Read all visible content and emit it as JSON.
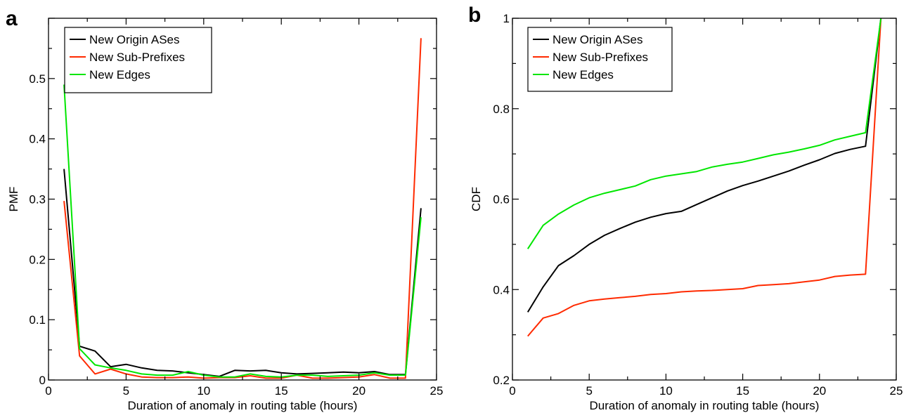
{
  "chart_data": [
    {
      "panel": "a",
      "type": "line",
      "title": "",
      "xlabel": "Duration of anomaly in routing table (hours)",
      "ylabel": "PMF",
      "xlim": [
        0,
        25
      ],
      "ylim": [
        0,
        0.6
      ],
      "xticks": [
        0,
        5,
        10,
        15,
        20,
        25
      ],
      "yticks": [
        0,
        0.1,
        0.2,
        0.3,
        0.4,
        0.5
      ],
      "ytick_labels": [
        "0",
        "0.1",
        "0.2",
        "0.3",
        "0.4",
        "0.5"
      ],
      "grid": false,
      "legend": "top-left",
      "x": [
        1,
        2,
        3,
        4,
        5,
        6,
        7,
        8,
        9,
        10,
        11,
        12,
        13,
        14,
        15,
        16,
        17,
        18,
        19,
        20,
        21,
        22,
        23,
        24
      ],
      "series": [
        {
          "name": "New Origin ASes",
          "color": "#000000",
          "values": [
            0.35,
            0.056,
            0.048,
            0.022,
            0.026,
            0.02,
            0.016,
            0.015,
            0.012,
            0.009,
            0.006,
            0.016,
            0.015,
            0.016,
            0.012,
            0.01,
            0.011,
            0.012,
            0.013,
            0.012,
            0.014,
            0.009,
            0.009,
            0.285
          ]
        },
        {
          "name": "New Sub-Prefixes",
          "color": "#ff2a00",
          "values": [
            0.297,
            0.04,
            0.01,
            0.018,
            0.01,
            0.005,
            0.004,
            0.004,
            0.005,
            0.003,
            0.004,
            0.004,
            0.007,
            0.003,
            0.003,
            0.008,
            0.003,
            0.003,
            0.004,
            0.005,
            0.009,
            0.003,
            0.003,
            0.567
          ]
        },
        {
          "name": "New Edges",
          "color": "#00e600",
          "values": [
            0.49,
            0.052,
            0.025,
            0.02,
            0.016,
            0.01,
            0.008,
            0.008,
            0.014,
            0.008,
            0.005,
            0.005,
            0.01,
            0.006,
            0.005,
            0.008,
            0.008,
            0.006,
            0.007,
            0.008,
            0.012,
            0.008,
            0.008,
            0.27
          ]
        }
      ]
    },
    {
      "panel": "b",
      "type": "line",
      "title": "",
      "xlabel": "Duration of anomaly in routing table (hours)",
      "ylabel": "CDF",
      "xlim": [
        0,
        25
      ],
      "ylim": [
        0.2,
        1
      ],
      "xticks": [
        0,
        5,
        10,
        15,
        20,
        25
      ],
      "yticks": [
        0.2,
        0.4,
        0.6,
        0.8,
        1
      ],
      "ytick_labels": [
        "0.2",
        "0.4",
        "0.6",
        "0.8",
        "1"
      ],
      "grid": false,
      "legend": "top-left",
      "x": [
        1,
        2,
        3,
        4,
        5,
        6,
        7,
        8,
        9,
        10,
        11,
        12,
        13,
        14,
        15,
        16,
        17,
        18,
        19,
        20,
        21,
        22,
        23,
        24
      ],
      "series": [
        {
          "name": "New Origin ASes",
          "color": "#000000",
          "values": [
            0.35,
            0.406,
            0.453,
            0.475,
            0.5,
            0.52,
            0.535,
            0.549,
            0.56,
            0.568,
            0.573,
            0.588,
            0.603,
            0.618,
            0.63,
            0.64,
            0.651,
            0.662,
            0.675,
            0.687,
            0.701,
            0.71,
            0.717,
            1
          ]
        },
        {
          "name": "New Sub-Prefixes",
          "color": "#ff2a00",
          "values": [
            0.297,
            0.337,
            0.347,
            0.365,
            0.375,
            0.379,
            0.382,
            0.385,
            0.389,
            0.391,
            0.395,
            0.397,
            0.398,
            0.4,
            0.402,
            0.409,
            0.411,
            0.413,
            0.417,
            0.421,
            0.429,
            0.432,
            0.434,
            1
          ]
        },
        {
          "name": "New Edges",
          "color": "#00e600",
          "values": [
            0.49,
            0.542,
            0.567,
            0.587,
            0.603,
            0.613,
            0.621,
            0.629,
            0.643,
            0.651,
            0.656,
            0.661,
            0.671,
            0.677,
            0.682,
            0.69,
            0.698,
            0.704,
            0.711,
            0.719,
            0.731,
            0.739,
            0.747,
            1
          ]
        }
      ]
    }
  ],
  "panels": {
    "a": {
      "letter": "a"
    },
    "b": {
      "letter": "b"
    }
  }
}
